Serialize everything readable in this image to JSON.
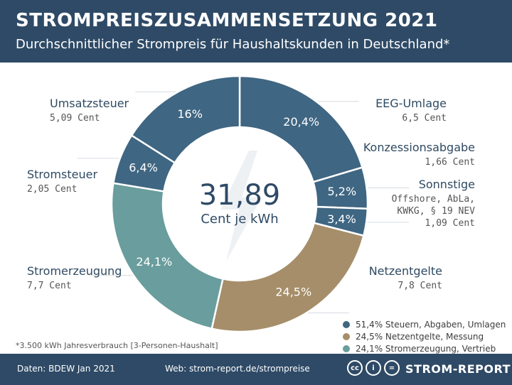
{
  "header": {
    "title": "STROMPREISZUSAMMENSETZUNG 2021",
    "subtitle": "Durchschnittlicher Strompreis für Haushaltskunden in Deutschland*"
  },
  "center": {
    "value": "31,89",
    "unit": "Cent je kWh"
  },
  "chart_data": {
    "type": "pie",
    "variant": "donut",
    "total": 31.89,
    "slices": [
      {
        "name": "EEG-Umlage",
        "percent_label": "20,4%",
        "percent": 20.4,
        "value_label": "6,5 Cent",
        "color": "#3f6682"
      },
      {
        "name": "Konzessionsabgabe",
        "percent_label": "5,2%",
        "percent": 5.2,
        "value_label": "1,66 Cent",
        "color": "#3f6682"
      },
      {
        "name": "Sonnstige",
        "percent_label": "3,4%",
        "percent": 3.4,
        "value_label": "Offshore, AbLa, KWKG, § 19 NEV 1,09 Cent",
        "color": "#3f6682"
      },
      {
        "name": "Netzentgelte",
        "percent_label": "24,5%",
        "percent": 24.5,
        "value_label": "7,8 Cent",
        "color": "#a58e69"
      },
      {
        "name": "Stromerzeugung",
        "percent_label": "24,1%",
        "percent": 24.1,
        "value_label": "7,7 Cent",
        "color": "#6a9d9d"
      },
      {
        "name": "Stromsteuer",
        "percent_label": "6,4%",
        "percent": 6.4,
        "value_label": "2,05 Cent",
        "color": "#3f6682"
      },
      {
        "name": "Umsatzsteuer",
        "percent_label": "16%",
        "percent": 16,
        "value_label": "5,09 Cent",
        "color": "#3f6682"
      }
    ]
  },
  "labels": {
    "umsatzsteuer": {
      "name": "Umsatzsteuer",
      "value": "5,09 Cent"
    },
    "stromsteuer": {
      "name": "Stromsteuer",
      "value": "2,05 Cent"
    },
    "stromerzeugung": {
      "name": "Stromerzeugung",
      "value": "7,7 Cent"
    },
    "eeg": {
      "name": "EEG-Umlage",
      "value": "6,5 Cent"
    },
    "konzession": {
      "name": "Konzessionsabgabe",
      "value": "1,66 Cent"
    },
    "sonnstige": {
      "name": "Sonnstige",
      "line1": "Offshore, AbLa,",
      "line2": "KWKG, § 19 NEV",
      "line3": "1,09 Cent"
    },
    "netzentgelte": {
      "name": "Netzentgelte",
      "value": "7,8 Cent"
    }
  },
  "legend": [
    {
      "text": "51,4% Steuern, Abgaben, Umlagen",
      "color": "#3f6682"
    },
    {
      "text": "24,5% Netzentgelte, Messung",
      "color": "#a58e69"
    },
    {
      "text": "24,1% Stromerzeugung, Vertrieb",
      "color": "#6a9d9d"
    }
  ],
  "footnote": "*3.500 kWh Jahresverbrauch [3-Personen-Haushalt]",
  "footer": {
    "source": "Daten: BDEW Jan 2021",
    "web": "Web: strom-report.de/strompreise",
    "brand": "STROM-REPORT",
    "icon_cc": "cc",
    "icon_by": "i",
    "icon_nd": "="
  },
  "colors": {
    "header_bg": "#2e4a66",
    "blue": "#3f6682",
    "brown": "#a58e69",
    "teal": "#6a9d9d"
  }
}
